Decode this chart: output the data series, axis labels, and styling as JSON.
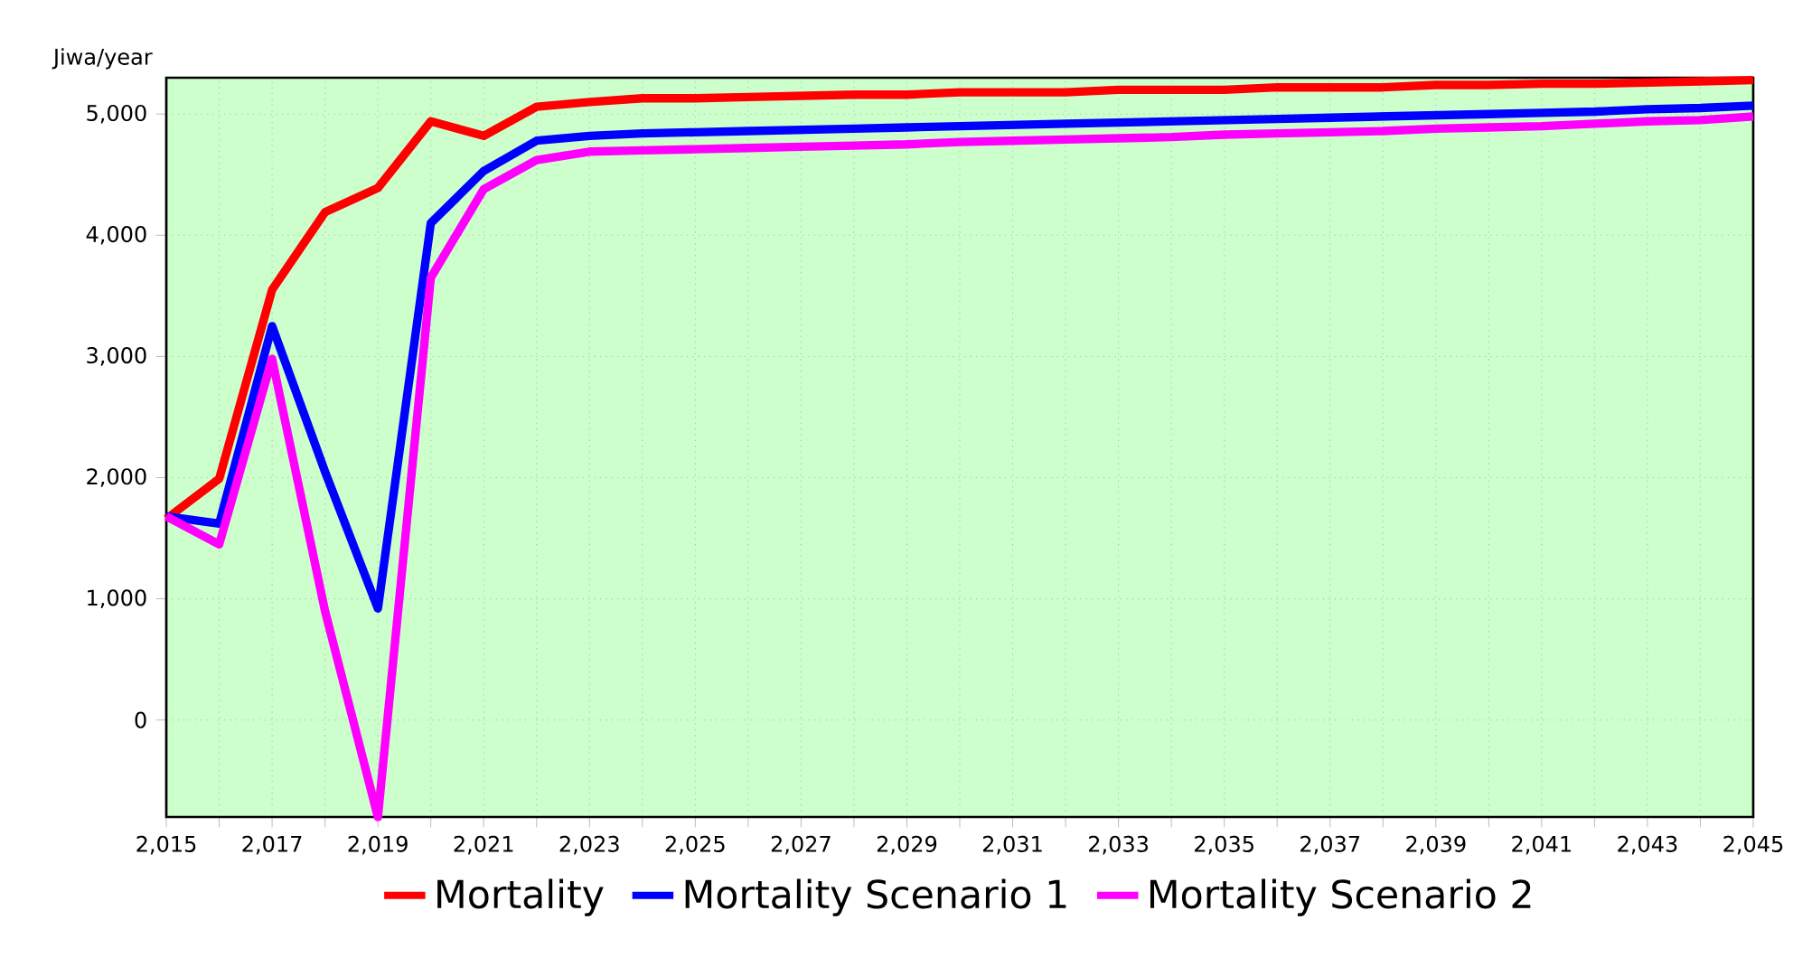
{
  "chart_data": {
    "type": "line",
    "ylabel": "Jiwa/year",
    "x": [
      2015,
      2016,
      2017,
      2018,
      2019,
      2020,
      2021,
      2022,
      2023,
      2024,
      2025,
      2026,
      2027,
      2028,
      2029,
      2030,
      2031,
      2032,
      2033,
      2034,
      2035,
      2036,
      2037,
      2038,
      2039,
      2040,
      2041,
      2042,
      2043,
      2044,
      2045
    ],
    "series": [
      {
        "name": "Mortality",
        "color": "#ff0000",
        "values": [
          1660,
          1990,
          3550,
          4190,
          4390,
          4940,
          4820,
          5060,
          5100,
          5130,
          5130,
          5140,
          5150,
          5160,
          5160,
          5180,
          5180,
          5180,
          5200,
          5200,
          5200,
          5220,
          5220,
          5220,
          5240,
          5240,
          5250,
          5250,
          5260,
          5270,
          5280
        ]
      },
      {
        "name": "Mortality Scenario 1",
        "color": "#0000ff",
        "values": [
          1680,
          1620,
          3250,
          2050,
          920,
          4100,
          4530,
          4780,
          4820,
          4840,
          4850,
          4860,
          4870,
          4880,
          4890,
          4900,
          4910,
          4920,
          4930,
          4940,
          4950,
          4960,
          4970,
          4980,
          4990,
          5000,
          5010,
          5020,
          5040,
          5050,
          5070
        ]
      },
      {
        "name": "Mortality Scenario 2",
        "color": "#ff00ff",
        "values": [
          1680,
          1450,
          2980,
          900,
          -800,
          3650,
          4380,
          4620,
          4690,
          4700,
          4710,
          4720,
          4730,
          4740,
          4750,
          4770,
          4780,
          4790,
          4800,
          4810,
          4830,
          4840,
          4850,
          4860,
          4880,
          4890,
          4900,
          4920,
          4940,
          4950,
          4980
        ]
      }
    ],
    "xlim": [
      2015,
      2045
    ],
    "xticks": [
      {
        "value": 2015,
        "label": "2,015"
      },
      {
        "value": 2016,
        "label": null
      },
      {
        "value": 2017,
        "label": "2,017"
      },
      {
        "value": 2018,
        "label": null
      },
      {
        "value": 2019,
        "label": "2,019"
      },
      {
        "value": 2020,
        "label": null
      },
      {
        "value": 2021,
        "label": "2,021"
      },
      {
        "value": 2022,
        "label": null
      },
      {
        "value": 2023,
        "label": "2,023"
      },
      {
        "value": 2024,
        "label": null
      },
      {
        "value": 2025,
        "label": "2,025"
      },
      {
        "value": 2026,
        "label": null
      },
      {
        "value": 2027,
        "label": "2,027"
      },
      {
        "value": 2028,
        "label": null
      },
      {
        "value": 2029,
        "label": "2,029"
      },
      {
        "value": 2030,
        "label": null
      },
      {
        "value": 2031,
        "label": "2,031"
      },
      {
        "value": 2032,
        "label": null
      },
      {
        "value": 2033,
        "label": "2,033"
      },
      {
        "value": 2034,
        "label": null
      },
      {
        "value": 2035,
        "label": "2,035"
      },
      {
        "value": 2036,
        "label": null
      },
      {
        "value": 2037,
        "label": "2,037"
      },
      {
        "value": 2038,
        "label": null
      },
      {
        "value": 2039,
        "label": "2,039"
      },
      {
        "value": 2040,
        "label": null
      },
      {
        "value": 2041,
        "label": "2,041"
      },
      {
        "value": 2042,
        "label": null
      },
      {
        "value": 2043,
        "label": "2,043"
      },
      {
        "value": 2044,
        "label": null
      },
      {
        "value": 2045,
        "label": "2,045"
      }
    ],
    "ylim": [
      -800,
      5300
    ],
    "yticks": [
      0,
      {
        "value": 1000,
        "label": "1,000"
      },
      {
        "value": 2000,
        "label": "2,000"
      },
      {
        "value": 3000,
        "label": "3,000"
      },
      {
        "value": 4000,
        "label": "4,000"
      },
      {
        "value": 5000,
        "label": "5,000"
      }
    ],
    "grid": true,
    "legend": "bottom",
    "marker": "none",
    "line_style": "solid"
  }
}
